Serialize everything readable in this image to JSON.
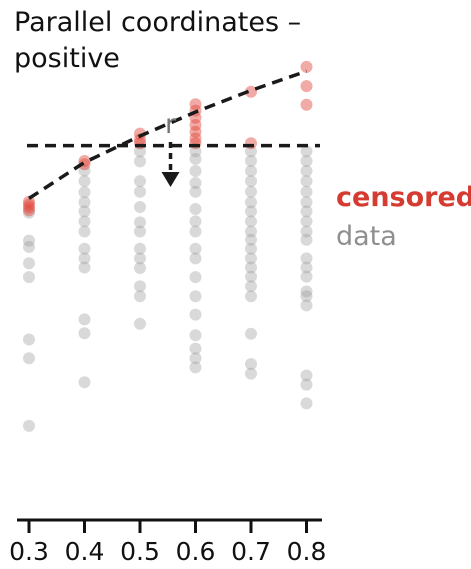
{
  "chart_data": {
    "type": "scatter",
    "title_lines": [
      "Parallel coordinates –",
      "positive"
    ],
    "xlabel": "",
    "ylabel": "",
    "x_ticks": [
      0.3,
      0.4,
      0.5,
      0.6,
      0.7,
      0.8
    ],
    "x_tick_labels": [
      "0.3",
      "0.4",
      "0.5",
      "0.6",
      "0.7",
      "0.8"
    ],
    "y_range": [
      0.0,
      1.0
    ],
    "threshold": 0.78,
    "censored_curve": {
      "x": [
        0.3,
        0.4,
        0.5,
        0.6,
        0.7,
        0.8
      ],
      "y": [
        0.67,
        0.745,
        0.8,
        0.85,
        0.895,
        0.935
      ]
    },
    "annotation": {
      "label": "r",
      "x": 0.555
    },
    "series": [
      {
        "name": "censored",
        "color": "#e0443a",
        "points": [
          [
            0.3,
            0.663
          ],
          [
            0.3,
            0.657
          ],
          [
            0.3,
            0.651
          ],
          [
            0.3,
            0.645
          ],
          [
            0.4,
            0.748
          ],
          [
            0.4,
            0.741
          ],
          [
            0.5,
            0.805
          ],
          [
            0.5,
            0.793
          ],
          [
            0.5,
            0.785
          ],
          [
            0.6,
            0.866
          ],
          [
            0.6,
            0.853
          ],
          [
            0.6,
            0.838
          ],
          [
            0.6,
            0.823
          ],
          [
            0.6,
            0.809
          ],
          [
            0.6,
            0.795
          ],
          [
            0.6,
            0.785
          ],
          [
            0.7,
            0.892
          ],
          [
            0.7,
            0.785
          ],
          [
            0.8,
            0.944
          ],
          [
            0.8,
            0.904
          ],
          [
            0.8,
            0.865
          ]
        ]
      },
      {
        "name": "data",
        "color": "#9a9a9a",
        "points": [
          [
            0.3,
            0.64
          ],
          [
            0.3,
            0.582
          ],
          [
            0.3,
            0.569
          ],
          [
            0.3,
            0.535
          ],
          [
            0.3,
            0.506
          ],
          [
            0.3,
            0.376
          ],
          [
            0.3,
            0.337
          ],
          [
            0.3,
            0.196
          ],
          [
            0.4,
            0.728
          ],
          [
            0.4,
            0.706
          ],
          [
            0.4,
            0.683
          ],
          [
            0.4,
            0.662
          ],
          [
            0.4,
            0.643
          ],
          [
            0.4,
            0.622
          ],
          [
            0.4,
            0.601
          ],
          [
            0.4,
            0.565
          ],
          [
            0.4,
            0.545
          ],
          [
            0.4,
            0.526
          ],
          [
            0.4,
            0.418
          ],
          [
            0.4,
            0.389
          ],
          [
            0.4,
            0.287
          ],
          [
            0.5,
            0.768
          ],
          [
            0.5,
            0.747
          ],
          [
            0.5,
            0.706
          ],
          [
            0.5,
            0.684
          ],
          [
            0.5,
            0.652
          ],
          [
            0.5,
            0.62
          ],
          [
            0.5,
            0.601
          ],
          [
            0.5,
            0.565
          ],
          [
            0.5,
            0.545
          ],
          [
            0.5,
            0.525
          ],
          [
            0.5,
            0.487
          ],
          [
            0.5,
            0.466
          ],
          [
            0.5,
            0.409
          ],
          [
            0.6,
            0.768
          ],
          [
            0.6,
            0.752
          ],
          [
            0.6,
            0.727
          ],
          [
            0.6,
            0.702
          ],
          [
            0.6,
            0.684
          ],
          [
            0.6,
            0.648
          ],
          [
            0.6,
            0.622
          ],
          [
            0.6,
            0.601
          ],
          [
            0.6,
            0.565
          ],
          [
            0.6,
            0.545
          ],
          [
            0.6,
            0.506
          ],
          [
            0.6,
            0.466
          ],
          [
            0.6,
            0.428
          ],
          [
            0.6,
            0.385
          ],
          [
            0.6,
            0.357
          ],
          [
            0.6,
            0.337
          ],
          [
            0.6,
            0.318
          ],
          [
            0.7,
            0.768
          ],
          [
            0.7,
            0.748
          ],
          [
            0.7,
            0.727
          ],
          [
            0.7,
            0.706
          ],
          [
            0.7,
            0.684
          ],
          [
            0.7,
            0.662
          ],
          [
            0.7,
            0.643
          ],
          [
            0.7,
            0.622
          ],
          [
            0.7,
            0.601
          ],
          [
            0.7,
            0.584
          ],
          [
            0.7,
            0.565
          ],
          [
            0.7,
            0.545
          ],
          [
            0.7,
            0.526
          ],
          [
            0.7,
            0.507
          ],
          [
            0.7,
            0.487
          ],
          [
            0.7,
            0.466
          ],
          [
            0.7,
            0.388
          ],
          [
            0.7,
            0.325
          ],
          [
            0.7,
            0.305
          ],
          [
            0.8,
            0.768
          ],
          [
            0.8,
            0.748
          ],
          [
            0.8,
            0.727
          ],
          [
            0.8,
            0.706
          ],
          [
            0.8,
            0.684
          ],
          [
            0.8,
            0.662
          ],
          [
            0.8,
            0.643
          ],
          [
            0.8,
            0.622
          ],
          [
            0.8,
            0.601
          ],
          [
            0.8,
            0.584
          ],
          [
            0.8,
            0.545
          ],
          [
            0.8,
            0.526
          ],
          [
            0.8,
            0.507
          ],
          [
            0.8,
            0.476
          ],
          [
            0.8,
            0.466
          ],
          [
            0.8,
            0.447
          ],
          [
            0.8,
            0.301
          ],
          [
            0.8,
            0.282
          ],
          [
            0.8,
            0.243
          ]
        ]
      }
    ],
    "legend": [
      {
        "label": "censored",
        "color": "#d53b30"
      },
      {
        "label": "data",
        "color": "#8f8f8f"
      }
    ]
  }
}
